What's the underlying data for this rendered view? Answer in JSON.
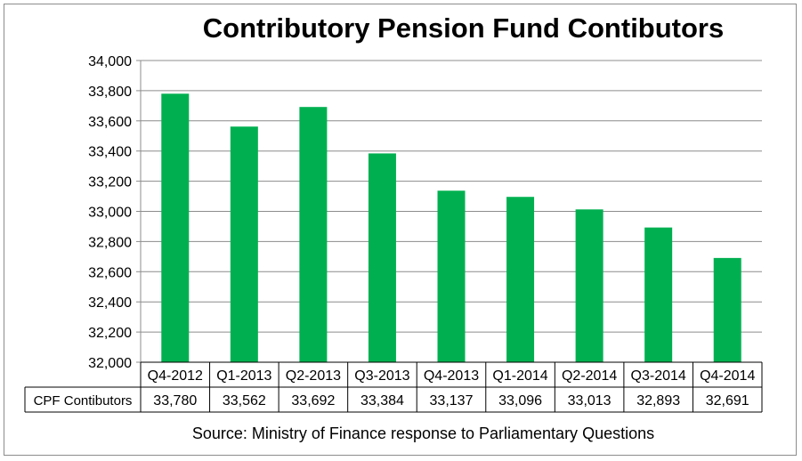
{
  "chart_data": {
    "type": "bar",
    "title": "Contributory Pension Fund Contibutors",
    "categories": [
      "Q4-2012",
      "Q1-2013",
      "Q2-2013",
      "Q3-2013",
      "Q4-2013",
      "Q1-2014",
      "Q2-2014",
      "Q3-2014",
      "Q4-2014"
    ],
    "series": [
      {
        "name": "CPF Contibutors",
        "values": [
          33780,
          33562,
          33692,
          33384,
          33137,
          33096,
          33013,
          32893,
          32691
        ],
        "value_labels": [
          "33,780",
          "33,562",
          "33,692",
          "33,384",
          "33,137",
          "33,096",
          "33,013",
          "32,893",
          "32,691"
        ]
      }
    ],
    "y_ticks": [
      "34,000",
      "33,800",
      "33,600",
      "33,400",
      "33,200",
      "33,000",
      "32,800",
      "32,600",
      "32,400",
      "32,200",
      "32,000"
    ],
    "ylim": [
      32000,
      34000
    ],
    "y_step": 200,
    "grid": true,
    "data_table": true,
    "bar_color": "#00b050",
    "source": "Source:  Ministry of Finance response to Parliamentary Questions"
  }
}
